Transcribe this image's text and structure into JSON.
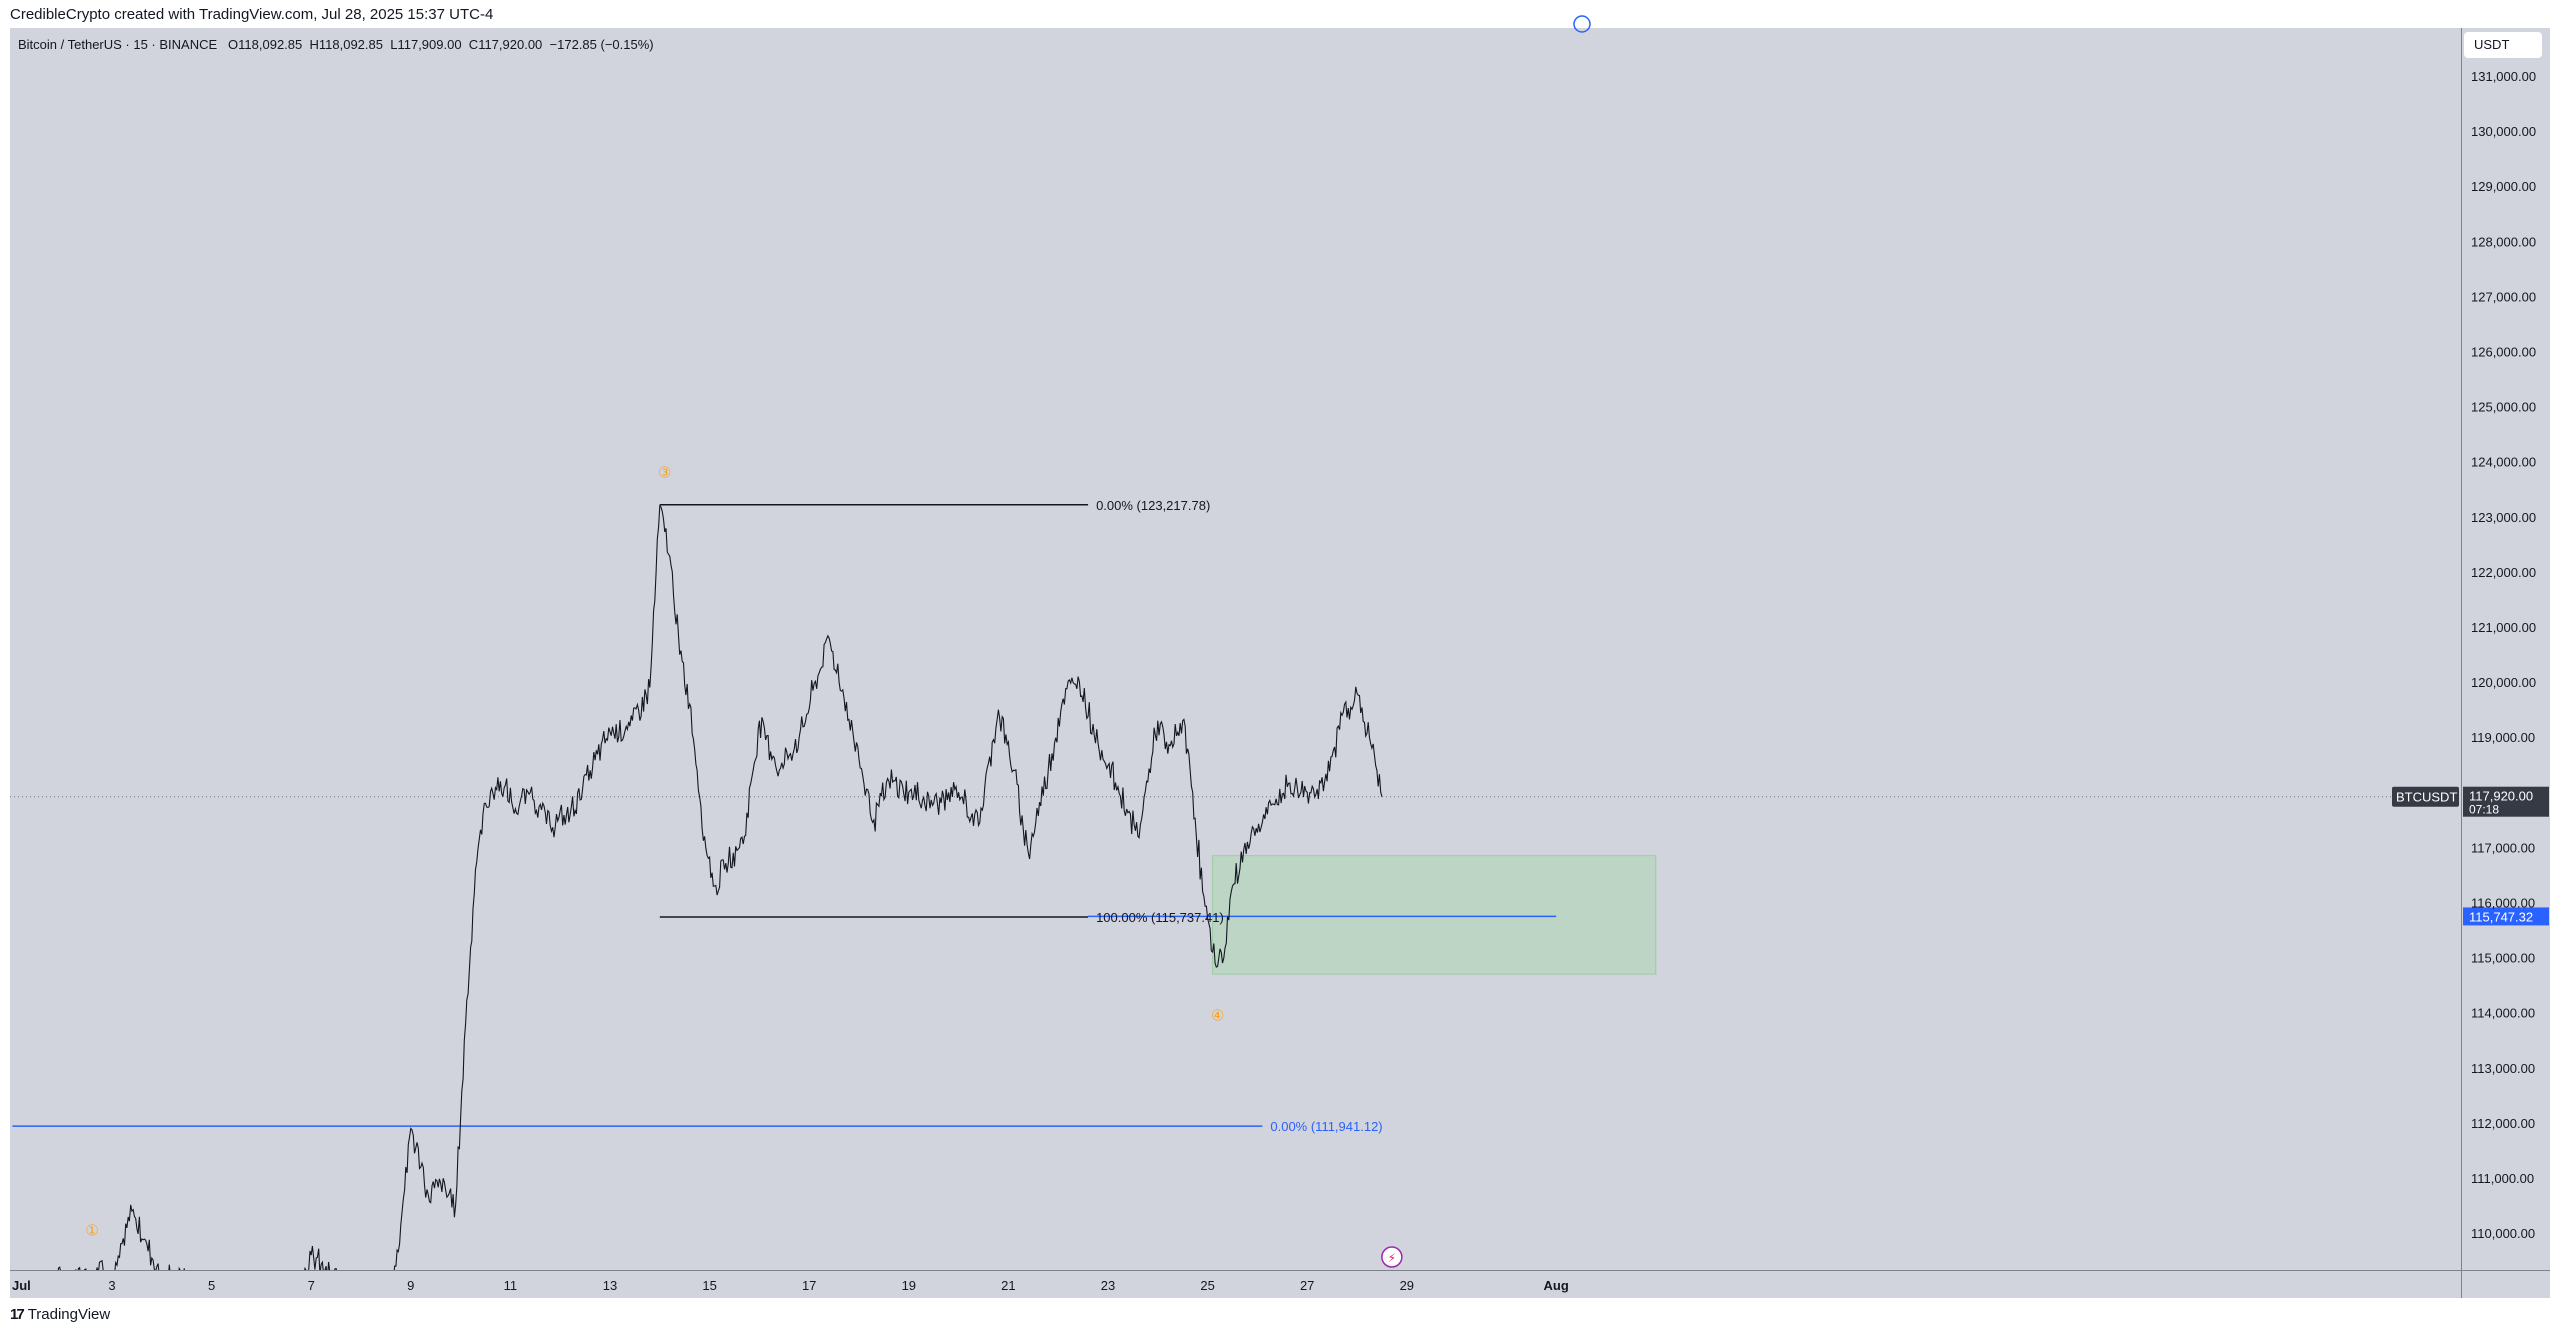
{
  "header": {
    "caption": "CredibleCrypto created with TradingView.com, Jul 28, 2025 15:37 UTC-4"
  },
  "legend": {
    "symbol": "Bitcoin / TetherUS · 15 · BINANCE",
    "open_label": "O",
    "open": "118,092.85",
    "high_label": "H",
    "high": "118,092.85",
    "low_label": "L",
    "low": "117,909.00",
    "close_label": "C",
    "close": "117,920.00",
    "change": "−172.85 (−0.15%)"
  },
  "currency_button": "USDT",
  "footer": {
    "brand_mark": "17",
    "brand_name": "TradingView"
  },
  "colors": {
    "background": "#d1d4dc",
    "price_line": "#131722",
    "fib_blue": "#2962ff",
    "zone_fill": "#a5d6a7",
    "wave_label": "#f6a524",
    "current_price_tag": "#363a45"
  },
  "chart_data": {
    "type": "line",
    "title": "Bitcoin / TetherUS · 15 · BINANCE",
    "x_tick_labels": [
      "Jul",
      "3",
      "5",
      "7",
      "9",
      "11",
      "13",
      "15",
      "17",
      "19",
      "21",
      "23",
      "25",
      "27",
      "29",
      "Aug"
    ],
    "y_tick_labels": [
      "131,000.00",
      "130,000.00",
      "129,000.00",
      "128,000.00",
      "127,000.00",
      "126,000.00",
      "125,000.00",
      "124,000.00",
      "123,000.00",
      "122,000.00",
      "121,000.00",
      "120,000.00",
      "119,000.00",
      "117,000.00",
      "116,000.00",
      "115,000.00",
      "114,000.00",
      "113,000.00",
      "112,000.00",
      "111,000.00",
      "110,000.00"
    ],
    "y_tick_values": [
      131000,
      130000,
      129000,
      128000,
      127000,
      126000,
      125000,
      124000,
      123000,
      122000,
      121000,
      120000,
      119000,
      117000,
      116000,
      115000,
      114000,
      113000,
      112000,
      111000,
      110000
    ],
    "ylim": [
      109350,
      131900
    ],
    "xlim": [
      1,
      32
    ],
    "x_tick_days": [
      1,
      3,
      5,
      7,
      9,
      11,
      13,
      15,
      17,
      19,
      21,
      23,
      25,
      27,
      29,
      32
    ],
    "grid": false,
    "series": [
      {
        "x": [
          1.0,
          2.6,
          2.8,
          3.0,
          3.4,
          3.7,
          4.0,
          6.6,
          7.0,
          7.4,
          8.4,
          8.7,
          9.0,
          9.35,
          9.6,
          9.9,
          10.1,
          10.3,
          10.5,
          10.8,
          11.1,
          11.4,
          11.8,
          12.2,
          12.6,
          13.0,
          13.4,
          13.8,
          14.0,
          14.25,
          14.4,
          14.6,
          14.9,
          15.1,
          15.3,
          15.7,
          16.0,
          16.4,
          16.8,
          17.4,
          17.7,
          18.0,
          18.3,
          18.6,
          19.0,
          19.5,
          20.0,
          20.4,
          20.8,
          21.1,
          21.4,
          21.8,
          22.1,
          22.4,
          22.8,
          23.2,
          23.6,
          24.0,
          24.2,
          24.5,
          24.7,
          24.9,
          25.1,
          25.3,
          25.5,
          25.8,
          26.2,
          26.6,
          27.0,
          27.4,
          27.7,
          28.0,
          28.3,
          28.5
        ],
        "y": [
          108900,
          109300,
          109500,
          109000,
          110400,
          109800,
          109200,
          108900,
          109600,
          109200,
          108900,
          109400,
          111900,
          110700,
          110900,
          110500,
          113800,
          116600,
          117800,
          118200,
          117700,
          118000,
          117400,
          117600,
          118400,
          119100,
          119200,
          119900,
          123200,
          122000,
          120500,
          119600,
          117200,
          116300,
          116600,
          117200,
          119300,
          118400,
          119000,
          120800,
          119700,
          118600,
          117500,
          118200,
          118000,
          117800,
          118000,
          117400,
          119500,
          118400,
          116900,
          118400,
          119700,
          120100,
          118900,
          118100,
          117200,
          119300,
          118700,
          119300,
          118000,
          116200,
          115100,
          114900,
          116300,
          117100,
          117600,
          118100,
          118000,
          118200,
          119400,
          119800,
          118800,
          117920
        ]
      }
    ],
    "current_price": {
      "symbol": "BTCUSDT",
      "price": "117,920.00",
      "countdown": "07:18",
      "value": 117920
    },
    "fib_levels": [
      {
        "label": "0.00% (123,217.78)",
        "value": 123217.78,
        "x_start": 14.0,
        "x_end": 22.6
      },
      {
        "label": "100.00% (115,737.41)",
        "value": 115737.41,
        "x_start": 14.0,
        "x_end": 22.6
      }
    ],
    "blue_levels": [
      {
        "label": "0.00% (111,941.12)",
        "value": 111941.12,
        "axis_tag": "",
        "x_start": 1,
        "x_end": 26.1
      },
      {
        "label": "",
        "value": 115747.32,
        "axis_tag": "115,747.32",
        "x_start": 22.6,
        "x_end": 32
      }
    ],
    "zone": {
      "x_start": 25.1,
      "x_end": 34.0,
      "y_low": 114700,
      "y_high": 116850
    },
    "wave_labels": [
      {
        "text": "①",
        "x": 2.6,
        "y": 110050
      },
      {
        "text": "③",
        "x": 14.1,
        "y": 123800
      },
      {
        "text": "④",
        "x": 25.2,
        "y": 113950
      }
    ]
  }
}
